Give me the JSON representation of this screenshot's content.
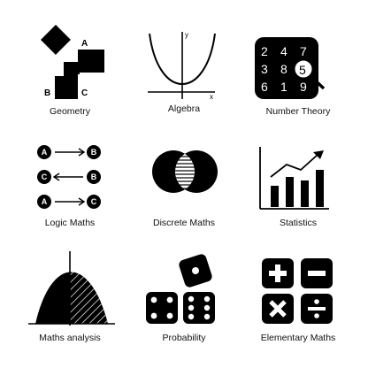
{
  "icons": [
    {
      "label": "Geometry",
      "icon": "geometry-icon",
      "letters": [
        "A",
        "B",
        "C"
      ]
    },
    {
      "label": "Algebra",
      "icon": "algebra-icon",
      "axes": [
        "y",
        "x"
      ]
    },
    {
      "label": "Number Theory",
      "icon": "number-theory-icon",
      "digits": [
        "2",
        "4",
        "7",
        "3",
        "8",
        "5",
        "6",
        "1",
        "9"
      ]
    },
    {
      "label": "Logic Maths",
      "icon": "logic-maths-icon",
      "letters": [
        "A",
        "B",
        "C",
        "B",
        "A",
        "C"
      ]
    },
    {
      "label": "Discrete Maths",
      "icon": "discrete-maths-icon"
    },
    {
      "label": "Statistics",
      "icon": "statistics-icon"
    },
    {
      "label": "Maths analysis",
      "icon": "maths-analysis-icon"
    },
    {
      "label": "Probability",
      "icon": "probability-icon"
    },
    {
      "label": "Elementary Maths",
      "icon": "elementary-maths-icon"
    }
  ]
}
